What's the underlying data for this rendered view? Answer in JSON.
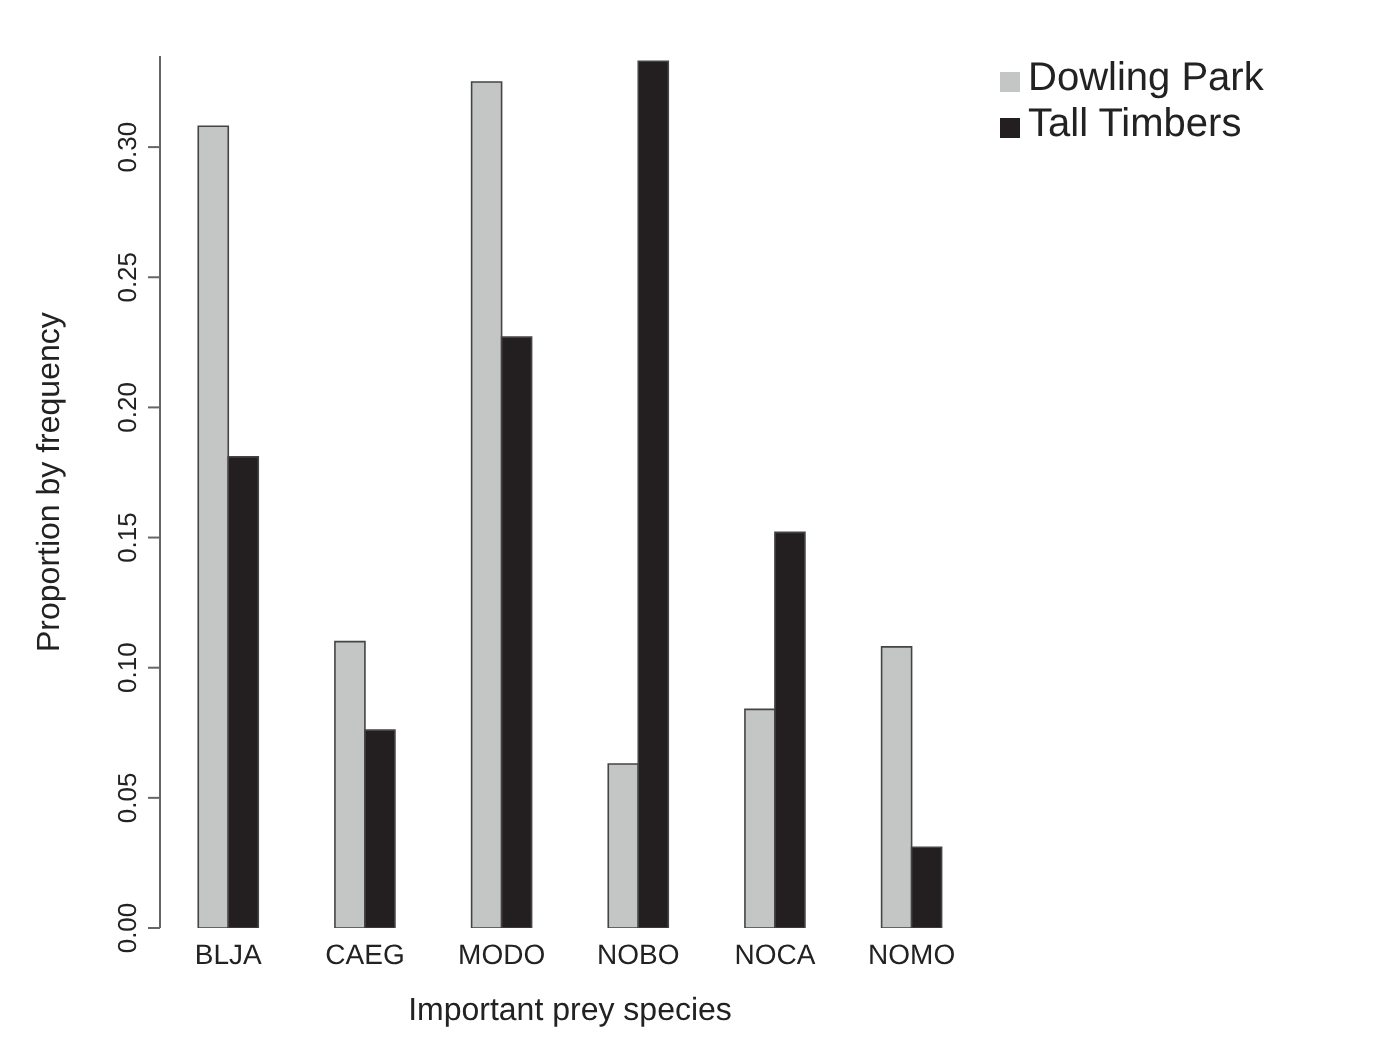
{
  "chart_data": {
    "type": "bar",
    "xlabel": "Important prey species",
    "ylabel": "Proportion by frequency",
    "categories": [
      "BLJA",
      "CAEG",
      "MODO",
      "NOBO",
      "NOCA",
      "NOMO"
    ],
    "series": [
      {
        "name": "Dowling Park",
        "color": "#c4c6c5",
        "values": [
          0.308,
          0.11,
          0.325,
          0.063,
          0.084,
          0.108
        ]
      },
      {
        "name": "Tall Timbers",
        "color": "#231f20",
        "values": [
          0.181,
          0.076,
          0.227,
          0.333,
          0.152,
          0.031
        ]
      }
    ],
    "ylim": [
      0,
      0.335
    ],
    "yticks": [
      {
        "value": 0,
        "label": "0.00"
      },
      {
        "value": 0.05,
        "label": "0.05"
      },
      {
        "value": 0.1,
        "label": "0.10"
      },
      {
        "value": 0.15,
        "label": "0.15"
      },
      {
        "value": 0.2,
        "label": "0.20"
      },
      {
        "value": 0.25,
        "label": "0.25"
      },
      {
        "value": 0.3,
        "label": "0.30"
      }
    ],
    "grid": false,
    "legend": "top right"
  }
}
